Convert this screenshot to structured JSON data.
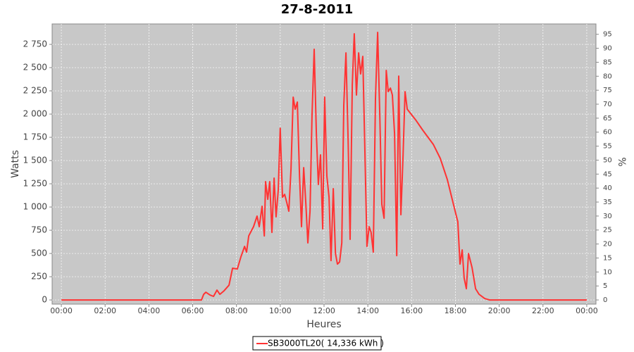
{
  "chart_data": {
    "type": "line",
    "title": "27-8-2011",
    "x_label": "Heures",
    "y_label": "Watts",
    "y2_label": "%",
    "grid": true,
    "xlim": [
      -0.42,
      24.42
    ],
    "xticks": [
      {
        "value": 0,
        "label": "00:00"
      },
      {
        "value": 2,
        "label": "02:00"
      },
      {
        "value": 4,
        "label": "04:00"
      },
      {
        "value": 6,
        "label": "06:00"
      },
      {
        "value": 8,
        "label": "08:00"
      },
      {
        "value": 10,
        "label": "10:00"
      },
      {
        "value": 12,
        "label": "12:00"
      },
      {
        "value": 14,
        "label": "14:00"
      },
      {
        "value": 16,
        "label": "16:00"
      },
      {
        "value": 18,
        "label": "18:00"
      },
      {
        "value": 20,
        "label": "20:00"
      },
      {
        "value": 22,
        "label": "22:00"
      },
      {
        "value": 24,
        "label": "00:00"
      }
    ],
    "ylim": [
      -45,
      2970
    ],
    "yticks": [
      0,
      250,
      500,
      750,
      {
        "value": 1000,
        "label": "1 000"
      },
      {
        "value": 1250,
        "label": "1 250"
      },
      {
        "value": 1500,
        "label": "1 500"
      },
      {
        "value": 1750,
        "label": "1 750"
      },
      {
        "value": 2000,
        "label": "2 000"
      },
      {
        "value": 2250,
        "label": "2 250"
      },
      {
        "value": 2500,
        "label": "2 500"
      },
      {
        "value": 2750,
        "label": "2 750"
      }
    ],
    "y2lim": [
      -1.5,
      98.7
    ],
    "y2ticks": [
      0,
      5,
      10,
      15,
      20,
      25,
      30,
      35,
      40,
      45,
      50,
      55,
      60,
      65,
      70,
      75,
      80,
      85,
      90,
      95
    ],
    "x": [
      0,
      6.4,
      6.5,
      6.6,
      6.79,
      6.95,
      7.11,
      7.24,
      7.43,
      7.66,
      7.82,
      8.04,
      8.2,
      8.37,
      8.46,
      8.56,
      8.78,
      8.94,
      9.04,
      9.17,
      9.27,
      9.33,
      9.43,
      9.52,
      9.62,
      9.72,
      9.81,
      9.91,
      10.0,
      10.1,
      10.2,
      10.3,
      10.39,
      10.49,
      10.59,
      10.68,
      10.78,
      10.88,
      10.97,
      11.07,
      11.17,
      11.26,
      11.36,
      11.45,
      11.55,
      11.65,
      11.74,
      11.84,
      11.94,
      12.03,
      12.13,
      12.23,
      12.32,
      12.42,
      12.52,
      12.61,
      12.71,
      12.81,
      12.9,
      13.0,
      13.1,
      13.19,
      13.29,
      13.38,
      13.48,
      13.58,
      13.67,
      13.77,
      13.87,
      13.96,
      14.06,
      14.15,
      14.25,
      14.35,
      14.45,
      14.55,
      14.64,
      14.74,
      14.84,
      14.93,
      15.03,
      15.12,
      15.22,
      15.32,
      15.41,
      15.51,
      15.61,
      15.7,
      15.8,
      16.18,
      16.51,
      16.99,
      17.31,
      17.63,
      17.95,
      18.11,
      18.21,
      18.31,
      18.4,
      18.5,
      18.6,
      18.76,
      18.92,
      19.08,
      19.34,
      19.56,
      24.0
    ],
    "series": [
      {
        "name": "SB3000TL20( 14,336 kWh )",
        "color": "#ff3333",
        "values": [
          0,
          0,
          60,
          83,
          53,
          38,
          106,
          60,
          98,
          159,
          341,
          333,
          462,
          576,
          515,
          689,
          788,
          902,
          788,
          1008,
          689,
          1273,
          1083,
          1273,
          727,
          1311,
          894,
          1182,
          1848,
          1106,
          1136,
          1045,
          955,
          1409,
          2182,
          2053,
          2129,
          1333,
          788,
          1424,
          1030,
          614,
          955,
          1977,
          2697,
          1788,
          1242,
          1561,
          765,
          2182,
          1333,
          1106,
          424,
          1197,
          500,
          386,
          409,
          614,
          2091,
          2659,
          1712,
          652,
          2318,
          2864,
          2205,
          2659,
          2432,
          2621,
          1561,
          576,
          788,
          727,
          515,
          2167,
          2879,
          1939,
          1030,
          879,
          2470,
          2242,
          2280,
          2205,
          1788,
          477,
          2409,
          917,
          1561,
          2242,
          2053,
          1939,
          1826,
          1674,
          1523,
          1295,
          992,
          841,
          386,
          538,
          235,
          121,
          500,
          348,
          121,
          61,
          15,
          0,
          0
        ]
      }
    ]
  }
}
